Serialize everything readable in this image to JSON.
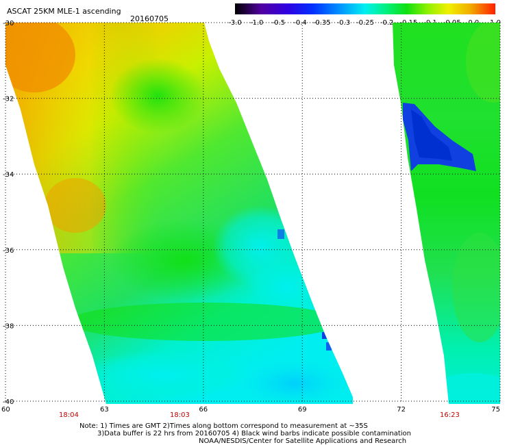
{
  "title": "ASCAT 25KM MLE-1 ascending",
  "date": "20160705",
  "colorbar": {
    "labels": [
      "-3.0",
      "-1.0",
      "-0.5",
      "-0.4",
      "-0.35",
      "-0.3",
      "-0.25",
      "-0.2",
      "-0.15",
      "-0.1",
      "-0.05",
      "0.0",
      "1.0"
    ]
  },
  "axes": {
    "lat_labels": [
      "-30",
      "-32",
      "-34",
      "-36",
      "-38",
      "-40"
    ],
    "lon_labels": [
      "60",
      "63",
      "66",
      "69",
      "72",
      "75"
    ],
    "lat_range": [
      -40,
      -30
    ],
    "lon_range": [
      60,
      75
    ]
  },
  "pass_times": [
    "18:04",
    "18:03",
    "16:23"
  ],
  "notes": {
    "line1": "Note: 1) Times are GMT 2)Times along bottom correspond to measurement at ~35S",
    "line2": "3)Data buffer is 22 hrs from 20160705 4) Black wind barbs indicate possible contamination",
    "line3": "NOAA/NESDIS/Center for Satellite Applications and Research"
  },
  "colors": {
    "blue": "#1040e0",
    "cyan": "#00f0f0",
    "green": "#10e010",
    "yellow_green": "#b0f000",
    "yellow": "#f0f000",
    "orange": "#f0a000",
    "time_label": "#c00000"
  }
}
